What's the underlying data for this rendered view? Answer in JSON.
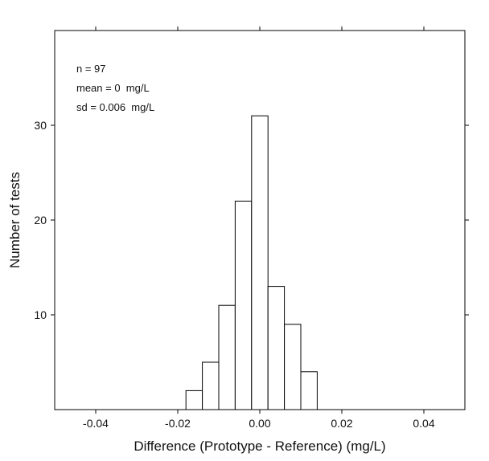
{
  "chart_data": {
    "type": "bar",
    "title": "",
    "xlabel": "Difference (Prototype - Reference) (mg/L)",
    "ylabel": "Number of tests",
    "xlim": [
      -0.05,
      0.05
    ],
    "ylim": [
      0,
      40
    ],
    "x_ticks": [
      -0.04,
      -0.02,
      0.0,
      0.02,
      0.04
    ],
    "x_tick_labels": [
      "-0.04",
      "-0.02",
      "0.00",
      "0.02",
      "0.04"
    ],
    "y_ticks": [
      10,
      20,
      30
    ],
    "y_tick_labels": [
      "10",
      "20",
      "30"
    ],
    "bin_width": 0.004,
    "bins": [
      {
        "x0": -0.018,
        "x1": -0.014,
        "count": 2
      },
      {
        "x0": -0.014,
        "x1": -0.01,
        "count": 5
      },
      {
        "x0": -0.01,
        "x1": -0.006,
        "count": 11
      },
      {
        "x0": -0.006,
        "x1": -0.002,
        "count": 22
      },
      {
        "x0": -0.002,
        "x1": 0.002,
        "count": 31
      },
      {
        "x0": 0.002,
        "x1": 0.006,
        "count": 13
      },
      {
        "x0": 0.006,
        "x1": 0.01,
        "count": 9
      },
      {
        "x0": 0.01,
        "x1": 0.014,
        "count": 4
      }
    ],
    "annotations": [
      "n = 97",
      "mean = 0  mg/L",
      "sd = 0.006  mg/L"
    ],
    "grid": false,
    "legend": "none",
    "colors": {
      "bar_fill": "#ffffff",
      "bar_stroke": "#000000",
      "axis": "#000000",
      "text": "#111111"
    }
  }
}
